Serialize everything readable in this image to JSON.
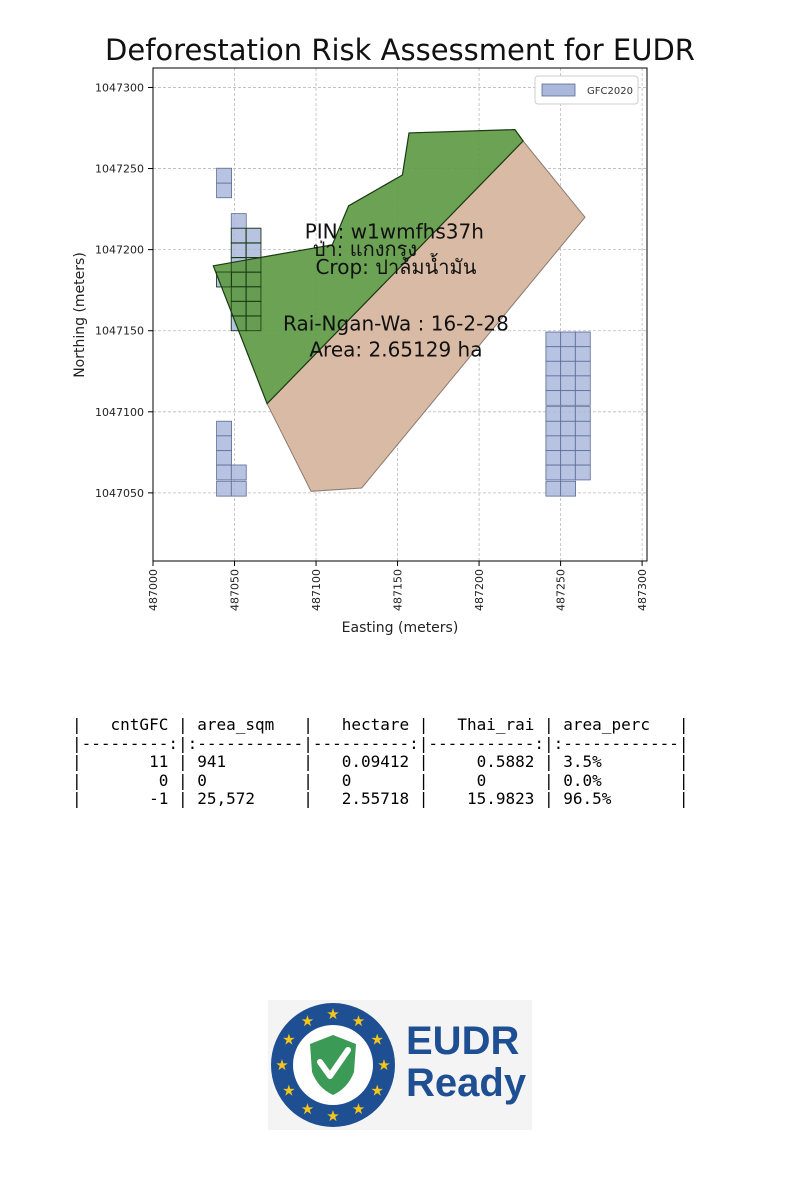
{
  "chart_data": {
    "type": "map-plot",
    "title": "Deforestation Risk Assessment for EUDR",
    "xlabel": "Easting (meters)",
    "ylabel": "Northing (meters)",
    "xlim": [
      487000,
      487303
    ],
    "ylim": [
      1047008,
      1047312
    ],
    "x_ticks": [
      487000,
      487050,
      487100,
      487150,
      487200,
      487250,
      487300
    ],
    "y_ticks": [
      1047050,
      1047100,
      1047150,
      1047200,
      1047250,
      1047300
    ],
    "grid": true,
    "legend": {
      "position": "top-right",
      "entries": [
        "GFC2020"
      ]
    },
    "colors": {
      "gfc": "#aab8dc",
      "gfc_edge": "#5a6a96",
      "forest": "#5e9a45",
      "parcel": "#d9bba5",
      "forest_edge": "#1b3a12",
      "parcel_edge": "#8a7a70"
    },
    "parcel_polygon": [
      [
        487070,
        1047105
      ],
      [
        487097,
        1047051
      ],
      [
        487128,
        1047053
      ],
      [
        487265,
        1047220
      ],
      [
        487227,
        1047267
      ]
    ],
    "forest_overlap_polygon": [
      [
        487037,
        1047190
      ],
      [
        487110,
        1047203
      ],
      [
        487120,
        1047227
      ],
      [
        487153,
        1047246
      ],
      [
        487157,
        1047272
      ],
      [
        487222,
        1047274
      ],
      [
        487227,
        1047267
      ],
      [
        487070,
        1047105
      ]
    ],
    "gfc_cell_size": 9.2,
    "gfc_cells": [
      [
        487039,
        1047232
      ],
      [
        487039,
        1047241
      ],
      [
        487048,
        1047213
      ],
      [
        487048,
        1047204
      ],
      [
        487057,
        1047204
      ],
      [
        487048,
        1047195
      ],
      [
        487057,
        1047195
      ],
      [
        487039,
        1047177
      ],
      [
        487048,
        1047186
      ],
      [
        487057,
        1047186
      ],
      [
        487048,
        1047177
      ],
      [
        487057,
        1047177
      ],
      [
        487048,
        1047168
      ],
      [
        487057,
        1047168
      ],
      [
        487048,
        1047159
      ],
      [
        487057,
        1047159
      ],
      [
        487048,
        1047150
      ],
      [
        487057,
        1047150
      ],
      [
        487039,
        1047085
      ],
      [
        487039,
        1047076
      ],
      [
        487039,
        1047067
      ],
      [
        487039,
        1047058
      ],
      [
        487039,
        1047048
      ],
      [
        487048,
        1047058
      ],
      [
        487048,
        1047048
      ],
      [
        487241,
        1047140
      ],
      [
        487250,
        1047140
      ],
      [
        487259,
        1047140
      ],
      [
        487241,
        1047131
      ],
      [
        487250,
        1047131
      ],
      [
        487259,
        1047131
      ],
      [
        487241,
        1047122
      ],
      [
        487250,
        1047122
      ],
      [
        487259,
        1047122
      ],
      [
        487241,
        1047113
      ],
      [
        487250,
        1047113
      ],
      [
        487259,
        1047113
      ],
      [
        487241,
        1047104
      ],
      [
        487250,
        1047104
      ],
      [
        487259,
        1047104
      ],
      [
        487241,
        1047094
      ],
      [
        487250,
        1047094
      ],
      [
        487259,
        1047094
      ],
      [
        487241,
        1047085
      ],
      [
        487250,
        1047085
      ],
      [
        487259,
        1047085
      ],
      [
        487241,
        1047076
      ],
      [
        487250,
        1047076
      ],
      [
        487259,
        1047076
      ],
      [
        487241,
        1047067
      ],
      [
        487250,
        1047067
      ],
      [
        487259,
        1047067
      ],
      [
        487241,
        1047058
      ],
      [
        487250,
        1047058
      ],
      [
        487259,
        1047058
      ],
      [
        487241,
        1047048
      ],
      [
        487250,
        1047048
      ]
    ],
    "annotations": [
      {
        "text": "PIN: w1wmfhs37h",
        "x": 487148,
        "y": 1047207
      },
      {
        "text": "ป่า: แกงกรุง",
        "x": 487130,
        "y": 1047196
      },
      {
        "text": "Crop: ปาล์มน้ำมัน",
        "x": 487149,
        "y": 1047185
      },
      {
        "text": "Rai-Ngan-Wa : 16-2-28",
        "x": 487149,
        "y": 1047150
      },
      {
        "text": "Area: 2.65129 ha",
        "x": 487149,
        "y": 1047134
      }
    ]
  },
  "table": {
    "lines": [
      "|   cntGFC | area_sqm   |   hectare |   Thai_rai | area_perc   |",
      "|---------:|:-----------|----------:|-----------:|:------------|",
      "|       11 | 941        |   0.09412 |     0.5882 | 3.5%        |",
      "|        0 | 0          |   0       |     0      | 0.0%        |",
      "|       -1 | 25,572     |   2.55718 |    15.9823 | 96.5%       |"
    ]
  },
  "logo": {
    "line1": "EUDR",
    "line2": "Ready"
  }
}
